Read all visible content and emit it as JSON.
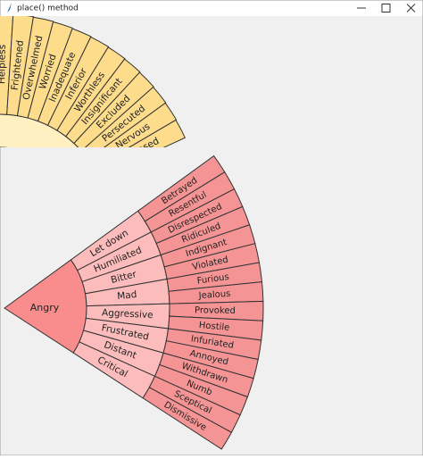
{
  "window_title": "place() method",
  "fear_image": {
    "outer_labels": [
      "Helpless",
      "Frightened",
      "Overwhelmed",
      "Worried",
      "Inadequate",
      "Inferior",
      "Worthless",
      "Insignificant",
      "Excluded",
      "Persecuted",
      "Nervous",
      "Exposed"
    ]
  },
  "anger_image": {
    "core": "Angry",
    "middle_labels": [
      "Let down",
      "Humiliated",
      "Bitter",
      "Mad",
      "Aggressive",
      "Frustrated",
      "Distant",
      "Critical"
    ],
    "outer_labels": [
      "Betrayed",
      "Resentful",
      "Disrespected",
      "Ridiculed",
      "Indignant",
      "Violated",
      "Furious",
      "Jealous",
      "Provoked",
      "Hostile",
      "Infuriated",
      "Annoyed",
      "Withdrawn",
      "Numb",
      "Sceptical",
      "Dismissive"
    ]
  }
}
